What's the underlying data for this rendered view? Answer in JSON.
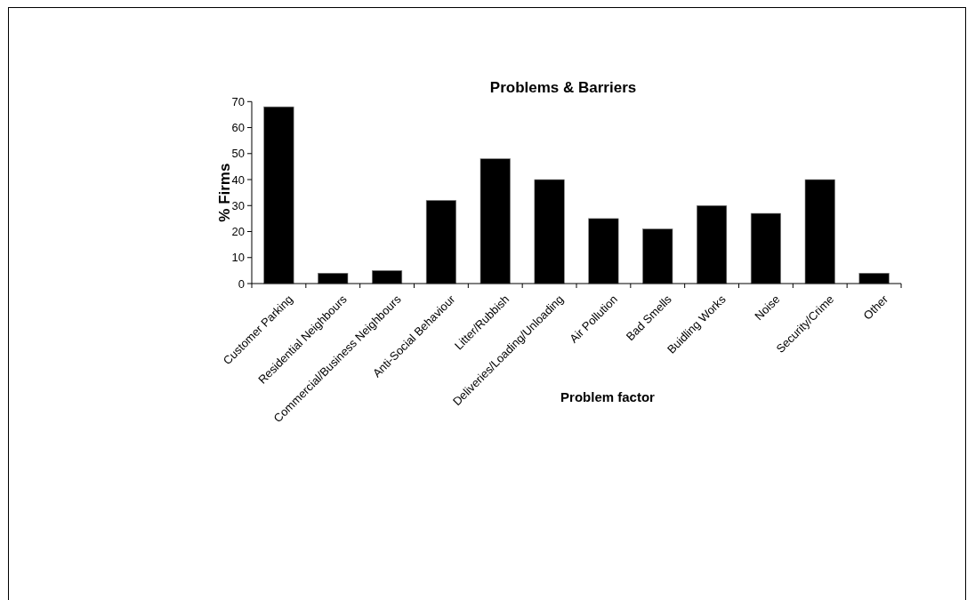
{
  "chart_data": {
    "type": "bar",
    "title": "Problems & Barriers",
    "xlabel": "Problem factor",
    "ylabel": "% Firms",
    "categories": [
      "Customer Parking",
      "Residential Neighbours",
      "Commercial/Business Neighbours",
      "Anti-Social Behaviour",
      "Litter/Rubbish",
      "Deliveries/Loading/Unloading",
      "Air Pollution",
      "Bad Smells",
      "Buidling Works",
      "Noise",
      "Security/Crime",
      "Other"
    ],
    "values": [
      68,
      4,
      5,
      32,
      48,
      40,
      25,
      21,
      30,
      27,
      40,
      4
    ],
    "color": "#000000",
    "ylim": [
      0,
      70
    ],
    "yticks": [
      0,
      10,
      20,
      30,
      40,
      50,
      60,
      70
    ]
  }
}
